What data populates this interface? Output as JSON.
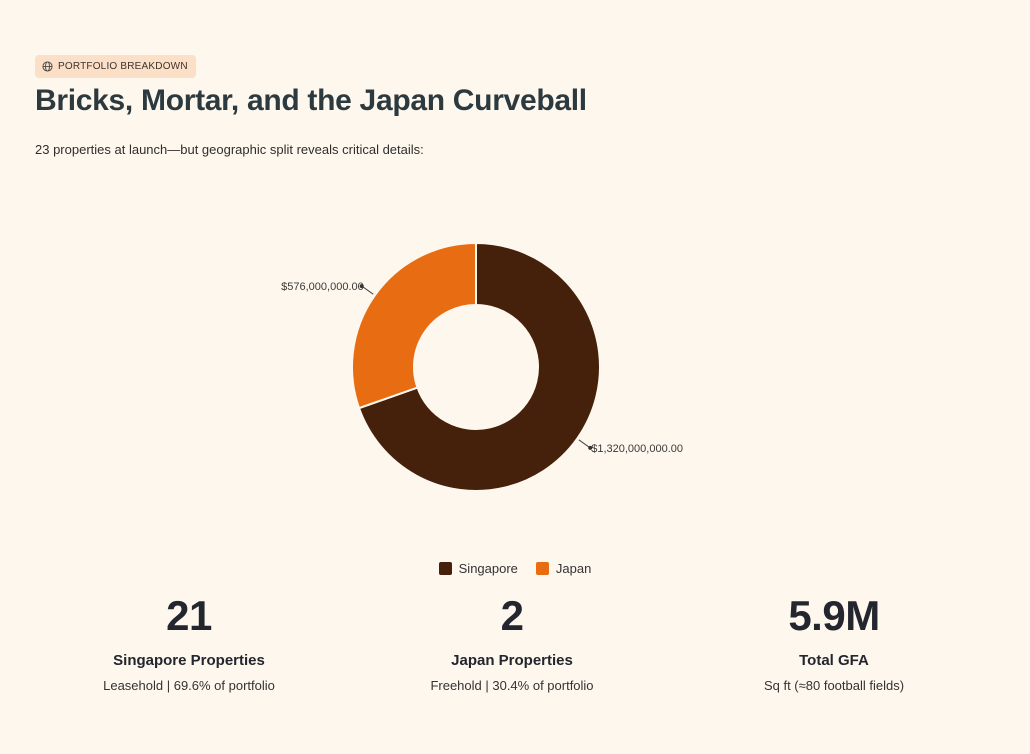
{
  "badge": {
    "icon": "globe-icon",
    "label": "PORTFOLIO BREAKDOWN"
  },
  "title": "Bricks, Mortar, and the Japan Curveball",
  "subtitle": "23 properties at launch—but geographic split reveals critical details:",
  "chart_data": {
    "type": "pie",
    "donut": true,
    "categories": [
      "Singapore",
      "Japan"
    ],
    "values": [
      1320000000,
      576000000
    ],
    "data_labels": [
      "$1,320,000,000.00",
      "$576,000,000.00"
    ],
    "colors": [
      "#45200a",
      "#e86c12"
    ],
    "legend": "bottom",
    "title": ""
  },
  "legend": [
    {
      "label": "Singapore",
      "color": "#45200a"
    },
    {
      "label": "Japan",
      "color": "#e86c12"
    }
  ],
  "stats": [
    {
      "value": "21",
      "label": "Singapore Properties",
      "desc": "Leasehold | 69.6% of portfolio"
    },
    {
      "value": "2",
      "label": "Japan Properties",
      "desc": "Freehold | 30.4% of portfolio"
    },
    {
      "value": "5.9M",
      "label": "Total GFA",
      "desc": "Sq ft (≈80 football fields)"
    }
  ]
}
